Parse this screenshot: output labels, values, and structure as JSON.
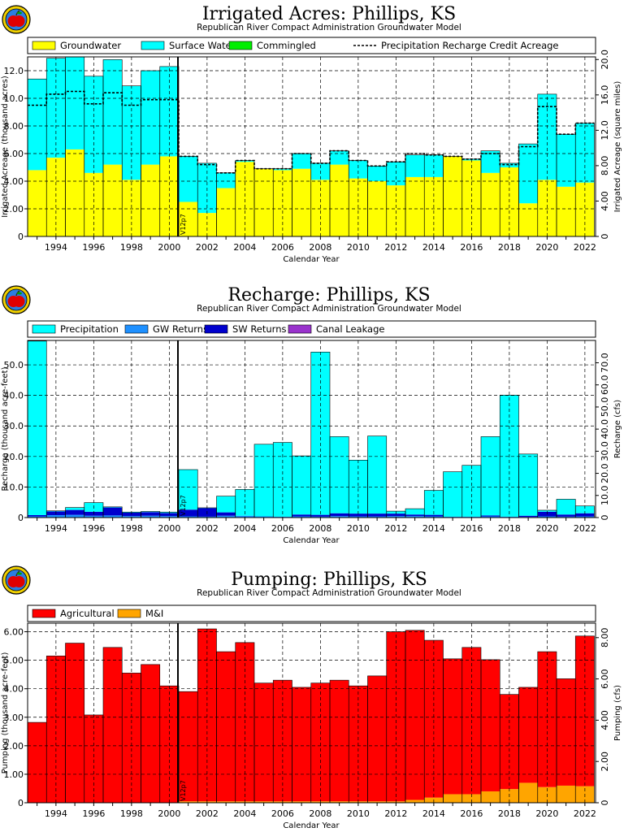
{
  "chart_data": [
    {
      "type": "bar",
      "title": "Irrigated Acres: Phillips, KS",
      "subtitle": "Republican River Compact Administration Groundwater Model",
      "xlabel": "Calendar Year",
      "ylabel": "Irrigated Acreage (thousand acres)",
      "ylabel_right": "Irrigated Acreage (square miles)",
      "ylim": [
        0,
        13.0
      ],
      "ylim_right": [
        0,
        20.3
      ],
      "yticks": [
        0,
        2.0,
        4.0,
        6.0,
        8.0,
        10.0,
        12.0
      ],
      "ytick_labels": [
        "0",
        "2.00",
        "4.00",
        "6.00",
        "8.00",
        "10.0",
        "12.0"
      ],
      "yticks_right": [
        0,
        4.0,
        8.0,
        12.0,
        16.0,
        20.0
      ],
      "ytick_labels_right": [
        "0",
        "4.00",
        "8.00",
        "12.0",
        "16.0",
        "20.0"
      ],
      "stacked": true,
      "grid": true,
      "legend_position": "top",
      "marker_label": "V12p7",
      "categories": [
        1993,
        1994,
        1995,
        1996,
        1997,
        1998,
        1999,
        2000,
        2001,
        2002,
        2003,
        2004,
        2005,
        2006,
        2007,
        2008,
        2009,
        2010,
        2011,
        2012,
        2013,
        2014,
        2015,
        2016,
        2017,
        2018,
        2019,
        2020,
        2021,
        2022
      ],
      "xtick_labels": [
        "1994",
        "1996",
        "1998",
        "2000",
        "2002",
        "2004",
        "2006",
        "2008",
        "2010",
        "2012",
        "2014",
        "2016",
        "2018",
        "2020",
        "2022"
      ],
      "series": [
        {
          "name": "Groundwater",
          "color": "#ffff00",
          "values": [
            4.8,
            5.7,
            6.3,
            4.6,
            5.2,
            4.1,
            5.2,
            5.8,
            2.5,
            1.7,
            3.5,
            5.4,
            4.9,
            4.8,
            4.9,
            4.1,
            5.2,
            4.2,
            4.0,
            3.7,
            4.3,
            4.3,
            5.8,
            5.5,
            4.6,
            5.0,
            2.4,
            4.1,
            3.6,
            3.9
          ]
        },
        {
          "name": "Surface Water",
          "color": "#00ffff",
          "values": [
            6.6,
            7.2,
            6.7,
            7.0,
            7.6,
            6.8,
            6.8,
            6.5,
            3.3,
            3.6,
            1.1,
            0.1,
            0.0,
            0.1,
            1.1,
            1.2,
            1.0,
            1.3,
            1.1,
            1.7,
            1.6,
            1.6,
            0.0,
            0.1,
            1.6,
            0.3,
            4.3,
            6.2,
            3.8,
            4.3
          ]
        },
        {
          "name": "Commingled",
          "color": "#00ee00",
          "values": [
            0,
            0,
            0,
            0,
            0,
            0,
            0,
            0,
            0,
            0,
            0,
            0,
            0,
            0,
            0,
            0,
            0,
            0,
            0,
            0,
            0,
            0,
            0,
            0,
            0,
            0,
            0,
            0,
            0,
            0
          ]
        }
      ],
      "line_series": {
        "name": "Precipitation Recharge Credit Acreage",
        "style": "dashed",
        "values": [
          9.5,
          10.3,
          10.5,
          9.6,
          10.4,
          9.5,
          9.9,
          9.9,
          5.8,
          5.2,
          4.6,
          5.5,
          4.9,
          4.9,
          6.0,
          5.3,
          6.2,
          5.5,
          5.1,
          5.4,
          6.0,
          5.9,
          5.8,
          5.6,
          6.0,
          5.2,
          6.5,
          9.4,
          7.4,
          8.2
        ]
      }
    },
    {
      "type": "bar",
      "title": "Recharge: Phillips, KS",
      "subtitle": "Republican River Compact Administration Groundwater Model",
      "xlabel": "Calendar Year",
      "ylabel": "Recharge (thousand acre-feet)",
      "ylabel_right": "Recharge (cfs)",
      "ylim": [
        0,
        58.0
      ],
      "ylim_right": [
        0,
        80.1
      ],
      "yticks": [
        0,
        10.0,
        20.0,
        30.0,
        40.0,
        50.0
      ],
      "ytick_labels": [
        "0",
        "10.0",
        "20.0",
        "30.0",
        "40.0",
        "50.0"
      ],
      "yticks_right": [
        0,
        10.0,
        20.0,
        30.0,
        40.0,
        50.0,
        60.0,
        70.0
      ],
      "ytick_labels_right": [
        "0",
        "10.0",
        "20.0",
        "30.0",
        "40.0",
        "50.0",
        "60.0",
        "70.0"
      ],
      "stacked": true,
      "grid": true,
      "legend_position": "top",
      "marker_label": "V12p7",
      "categories": [
        1993,
        1994,
        1995,
        1996,
        1997,
        1998,
        1999,
        2000,
        2001,
        2002,
        2003,
        2004,
        2005,
        2006,
        2007,
        2008,
        2009,
        2010,
        2011,
        2012,
        2013,
        2014,
        2015,
        2016,
        2017,
        2018,
        2019,
        2020,
        2021,
        2022
      ],
      "xtick_labels": [
        "1994",
        "1996",
        "1998",
        "2000",
        "2002",
        "2004",
        "2006",
        "2008",
        "2010",
        "2012",
        "2014",
        "2016",
        "2018",
        "2020",
        "2022"
      ],
      "series": [
        {
          "name": "GW Returns",
          "color": "#1e90ff",
          "values": [
            0.4,
            0.8,
            0.9,
            0.6,
            0.7,
            0.5,
            0.6,
            0.5,
            0.4,
            0.3,
            0.6,
            0.6,
            0.4,
            0.3,
            0.4,
            0.3,
            0.5,
            0.4,
            0.4,
            0.5,
            0.5,
            0.4,
            0.3,
            0.3,
            0.4,
            0.3,
            0.2,
            0.4,
            0.3,
            0.4
          ]
        },
        {
          "name": "SW Returns",
          "color": "#0000cd",
          "values": [
            0.4,
            1.2,
            1.6,
            1.3,
            2.6,
            1.1,
            1.2,
            1.0,
            2.2,
            2.8,
            1.1,
            0.0,
            0.0,
            0.0,
            0.6,
            0.6,
            0.9,
            0.9,
            0.9,
            0.8,
            0.5,
            0.5,
            0.0,
            0.0,
            0.3,
            0.0,
            0.4,
            1.5,
            0.7,
            1.0
          ]
        },
        {
          "name": "Canal Leakage",
          "color": "#9932cc",
          "values": [
            0,
            0,
            0,
            0,
            0,
            0,
            0,
            0,
            0,
            0,
            0,
            0,
            0,
            0,
            0,
            0,
            0,
            0,
            0,
            0,
            0,
            0,
            0,
            0,
            0,
            0,
            0,
            0,
            0,
            0
          ]
        },
        {
          "name": "Precipitation",
          "color": "#00ffff",
          "values": [
            57.0,
            0.2,
            0.8,
            3.0,
            0.2,
            0.2,
            0.2,
            0.3,
            13.1,
            0.1,
            5.3,
            8.6,
            23.6,
            24.3,
            19.2,
            53.3,
            25.1,
            17.5,
            25.4,
            0.8,
            1.9,
            8.0,
            14.7,
            16.8,
            25.8,
            39.8,
            20.2,
            0.5,
            5.0,
            2.4
          ]
        }
      ]
    },
    {
      "type": "bar",
      "title": "Pumping: Phillips, KS",
      "subtitle": "Republican River Compact Administration Groundwater Model",
      "xlabel": "Calendar Year",
      "ylabel": "Pumping (thousand acre-feet)",
      "ylabel_right": "Pumping (cfs)",
      "ylim": [
        0,
        6.3
      ],
      "ylim_right": [
        0,
        8.7
      ],
      "yticks": [
        0,
        1.0,
        2.0,
        3.0,
        4.0,
        5.0,
        6.0
      ],
      "ytick_labels": [
        "0",
        "1.00",
        "2.00",
        "3.00",
        "4.00",
        "5.00",
        "6.00"
      ],
      "yticks_right": [
        0,
        2.0,
        4.0,
        6.0,
        8.0
      ],
      "ytick_labels_right": [
        "0",
        "2.00",
        "4.00",
        "6.00",
        "8.00"
      ],
      "stacked": true,
      "grid": true,
      "legend_position": "top",
      "marker_label": "V12p7",
      "categories": [
        1993,
        1994,
        1995,
        1996,
        1997,
        1998,
        1999,
        2000,
        2001,
        2002,
        2003,
        2004,
        2005,
        2006,
        2007,
        2008,
        2009,
        2010,
        2011,
        2012,
        2013,
        2014,
        2015,
        2016,
        2017,
        2018,
        2019,
        2020,
        2021,
        2022
      ],
      "xtick_labels": [
        "1994",
        "1996",
        "1998",
        "2000",
        "2002",
        "2004",
        "2006",
        "2008",
        "2010",
        "2012",
        "2014",
        "2016",
        "2018",
        "2020",
        "2022"
      ],
      "series": [
        {
          "name": "M&I",
          "color": "#ffa500",
          "values": [
            0,
            0,
            0,
            0,
            0,
            0,
            0,
            0,
            0.05,
            0.05,
            0.05,
            0.05,
            0.05,
            0.05,
            0.05,
            0.05,
            0.05,
            0.05,
            0.05,
            0.05,
            0.1,
            0.18,
            0.3,
            0.3,
            0.4,
            0.48,
            0.7,
            0.55,
            0.6,
            0.58
          ]
        },
        {
          "name": "Agricultural",
          "color": "#ff0000",
          "values": [
            2.82,
            5.15,
            5.6,
            3.08,
            5.45,
            4.55,
            4.85,
            4.1,
            3.85,
            6.05,
            5.25,
            5.57,
            4.15,
            4.25,
            4.0,
            4.15,
            4.25,
            4.05,
            4.4,
            5.95,
            5.95,
            5.52,
            4.75,
            5.15,
            4.62,
            3.32,
            3.35,
            4.75,
            3.75,
            5.27
          ]
        }
      ]
    }
  ],
  "legend_order": [
    [
      "Groundwater",
      "Surface Water",
      "Commingled",
      "Precipitation Recharge Credit Acreage"
    ],
    [
      "Precipitation",
      "GW Returns",
      "SW Returns",
      "Canal Leakage"
    ],
    [
      "Agricultural",
      "M&I"
    ]
  ]
}
